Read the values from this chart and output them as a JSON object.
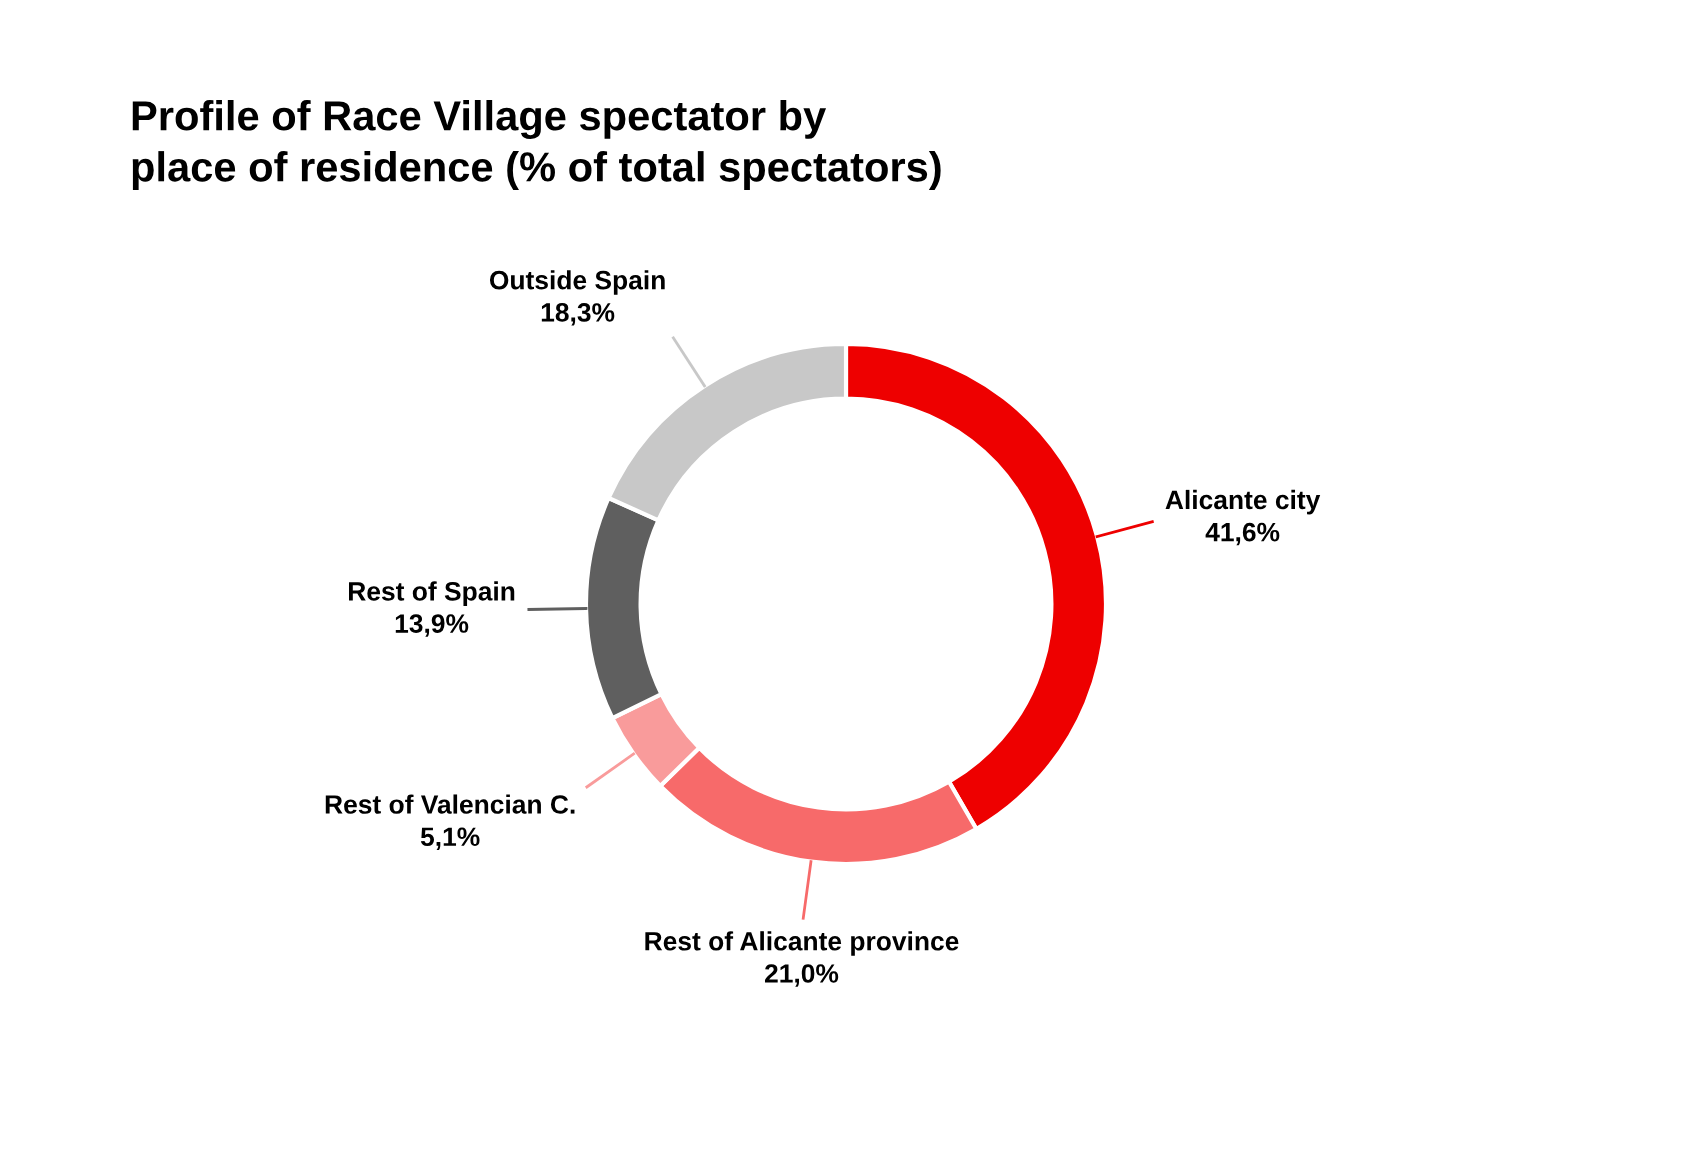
{
  "chart_data": {
    "type": "donut",
    "title": "Profile of Race Village spectator by\nplace of residence (% of total spectators)",
    "categories": [
      "Alicante city",
      "Rest of Alicante province",
      "Rest of Valencian C.",
      "Rest of Spain",
      "Outside Spain"
    ],
    "values": [
      41.6,
      21.0,
      5.1,
      13.9,
      18.3
    ],
    "value_labels": [
      "41,6%",
      "21,0%",
      "5,1%",
      "13,9%",
      "18,3%"
    ],
    "colors": [
      "#ee0000",
      "#f76a6a",
      "#f99b9b",
      "#5f5f5f",
      "#c8c8c8"
    ],
    "legend": false
  }
}
